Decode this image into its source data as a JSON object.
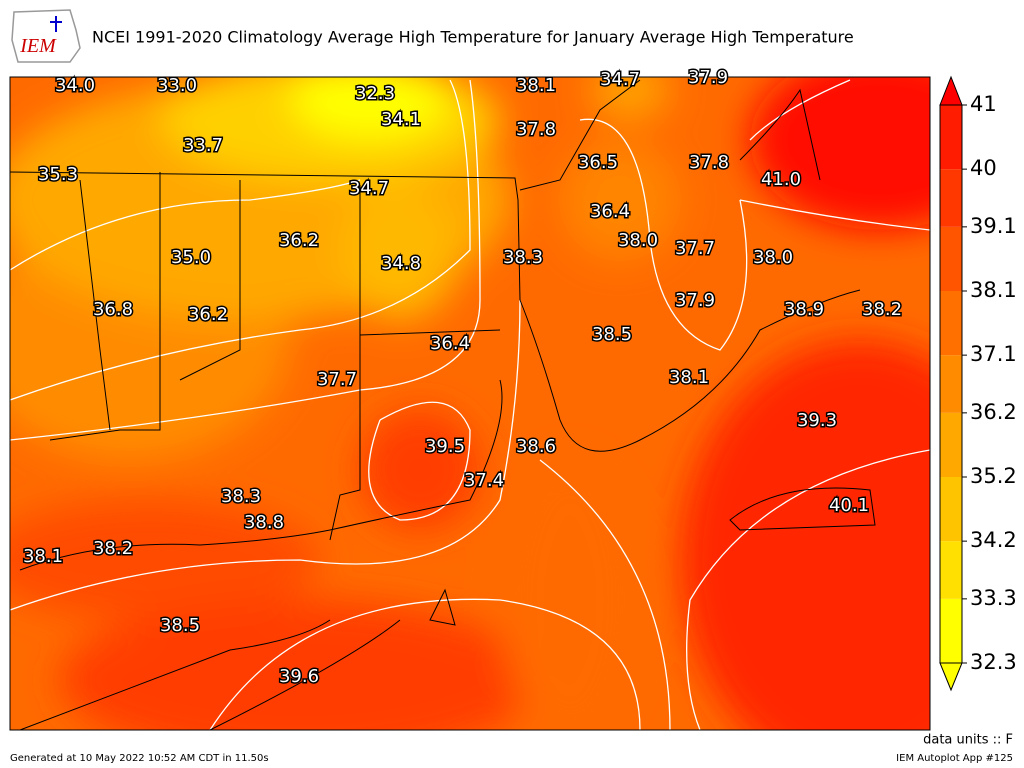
{
  "logo_text": "IEM",
  "title": "NCEI 1991-2020 Climatology Average High Temperature for January Average High Temperature",
  "stations": [
    "34.0",
    "33.0",
    "32.3",
    "38.1",
    "34.7",
    "37.9",
    "34.1",
    "37.8",
    "33.7",
    "36.5",
    "37.8",
    "35.3",
    "41.0",
    "34.7",
    "36.4",
    "36.2",
    "38.0",
    "37.7",
    "35.0",
    "38.3",
    "34.8",
    "38.0",
    "37.9",
    "36.8",
    "36.2",
    "38.9",
    "38.2",
    "38.5",
    "36.4",
    "37.7",
    "38.1",
    "39.3",
    "39.5",
    "38.6",
    "37.4",
    "38.3",
    "40.1",
    "38.8",
    "38.1",
    "38.2",
    "38.5",
    "39.6"
  ],
  "colorbar": {
    "lim": [
      32.3,
      41
    ],
    "ticks": [
      41,
      40,
      39.1,
      38.1,
      37.1,
      36.2,
      35.2,
      34.2,
      33.3,
      32.3
    ],
    "colors": [
      "#ffff00",
      "#ffe000",
      "#ffc400",
      "#ffa800",
      "#ff8c00",
      "#ff7000",
      "#ff5400",
      "#ff3800",
      "#ff1c00"
    ],
    "under_color": "#ffff00",
    "over_color": "#ff0000"
  },
  "units": "data units :: F",
  "footer_left": "Generated at 10 May 2022 10:52 AM CDT in 11.50s",
  "footer_right": "IEM Autoplot App #125"
}
